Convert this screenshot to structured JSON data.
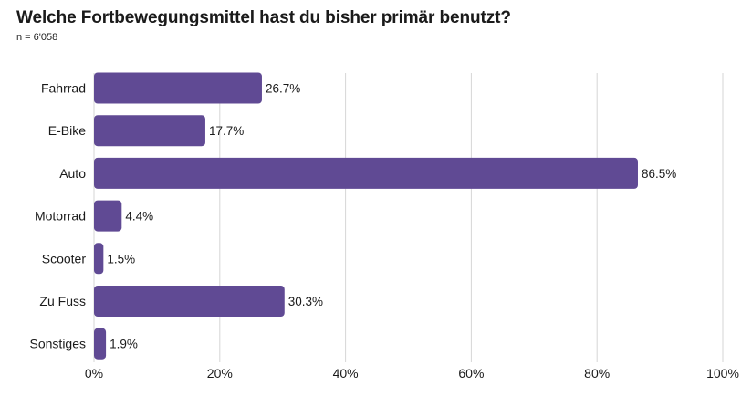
{
  "title": "Welche Fortbewegungsmittel hast du bisher primär benutzt?",
  "subtitle": "n = 6'058",
  "colors": {
    "bar": "#604a94",
    "grid": "#d6d6d6",
    "text": "#1a1a1a"
  },
  "chart_data": {
    "type": "bar",
    "orientation": "horizontal",
    "title": "Welche Fortbewegungsmittel hast du bisher primär benutzt?",
    "subtitle": "n = 6'058",
    "categories": [
      "Fahrrad",
      "E-Bike",
      "Auto",
      "Motorrad",
      "Scooter",
      "Zu Fuss",
      "Sonstiges"
    ],
    "values": [
      26.7,
      17.7,
      86.5,
      4.4,
      1.5,
      30.3,
      1.9
    ],
    "value_labels": [
      "26.7%",
      "17.7%",
      "86.5%",
      "4.4%",
      "1.5%",
      "30.3%",
      "1.9%"
    ],
    "xlim": [
      0,
      100
    ],
    "xticks": [
      0,
      20,
      40,
      60,
      80,
      100
    ],
    "xtick_labels": [
      "0%",
      "20%",
      "40%",
      "60%",
      "80%",
      "100%"
    ],
    "grid": true,
    "legend": "none"
  }
}
